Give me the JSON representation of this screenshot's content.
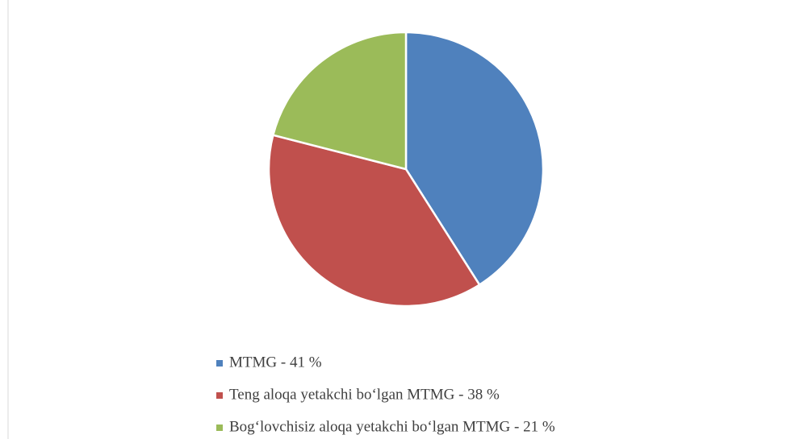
{
  "chart_data": {
    "type": "pie",
    "categories": [
      "MTMG - 41 %",
      "Teng aloqa yetakchi bo‘lgan MTMG - 38 %",
      "Bog‘lovchisiz aloqa yetakchi bo‘lgan MTMG - 21 %"
    ],
    "values": [
      41,
      38,
      21
    ],
    "colors": [
      "#4f81bd",
      "#c0504d",
      "#9bbb59"
    ],
    "start_angle": 0,
    "direction": "clockwise",
    "legend": "bottom"
  }
}
